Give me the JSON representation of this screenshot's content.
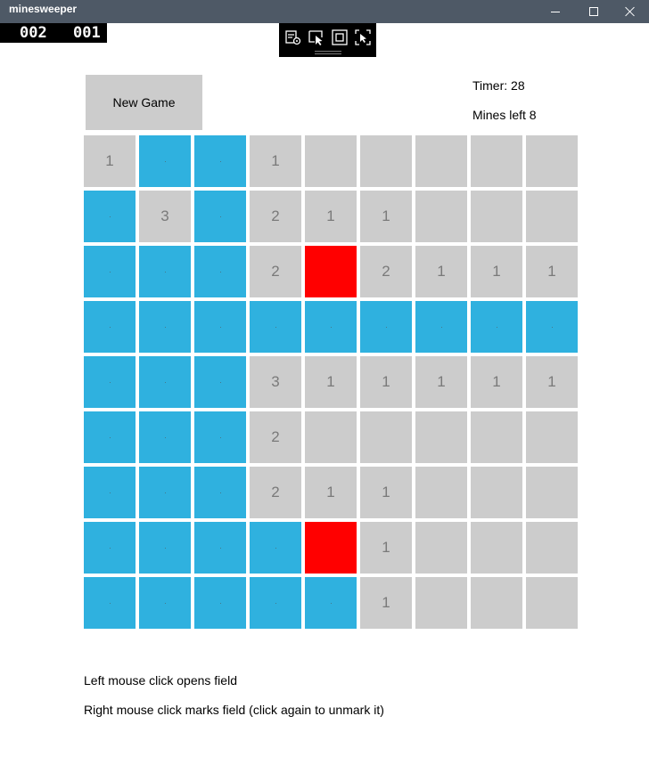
{
  "window": {
    "title": "minesweeper",
    "minimize_icon": "minimize-icon",
    "maximize_icon": "maximize-icon",
    "close_icon": "close-icon"
  },
  "frame_counter": {
    "left": "002",
    "right": "001"
  },
  "debug_toolbar": {
    "icons": [
      "live-visual-tree-icon",
      "select-element-icon",
      "display-layout-adorners-icon",
      "track-focused-element-icon"
    ]
  },
  "game": {
    "new_game_label": "New Game",
    "timer_text": "Timer: 28",
    "mines_left_text": "Mines left 8",
    "colors": {
      "hidden": "#2fb1df",
      "open": "#cccccc",
      "flagged": "#ff0000"
    },
    "board": [
      [
        {
          "s": "o",
          "n": "1"
        },
        {
          "s": "h",
          "n": ""
        },
        {
          "s": "h",
          "n": ""
        },
        {
          "s": "o",
          "n": "1"
        },
        {
          "s": "o",
          "n": ""
        },
        {
          "s": "o",
          "n": ""
        },
        {
          "s": "o",
          "n": ""
        },
        {
          "s": "o",
          "n": ""
        },
        {
          "s": "o",
          "n": ""
        }
      ],
      [
        {
          "s": "h",
          "n": ""
        },
        {
          "s": "o",
          "n": "3"
        },
        {
          "s": "h",
          "n": ""
        },
        {
          "s": "o",
          "n": "2"
        },
        {
          "s": "o",
          "n": "1"
        },
        {
          "s": "o",
          "n": "1"
        },
        {
          "s": "o",
          "n": ""
        },
        {
          "s": "o",
          "n": ""
        },
        {
          "s": "o",
          "n": ""
        }
      ],
      [
        {
          "s": "h",
          "n": ""
        },
        {
          "s": "h",
          "n": ""
        },
        {
          "s": "h",
          "n": ""
        },
        {
          "s": "o",
          "n": "2"
        },
        {
          "s": "f",
          "n": ""
        },
        {
          "s": "o",
          "n": "2"
        },
        {
          "s": "o",
          "n": "1"
        },
        {
          "s": "o",
          "n": "1"
        },
        {
          "s": "o",
          "n": "1"
        }
      ],
      [
        {
          "s": "h",
          "n": ""
        },
        {
          "s": "h",
          "n": ""
        },
        {
          "s": "h",
          "n": ""
        },
        {
          "s": "h",
          "n": ""
        },
        {
          "s": "h",
          "n": ""
        },
        {
          "s": "h",
          "n": ""
        },
        {
          "s": "h",
          "n": ""
        },
        {
          "s": "h",
          "n": ""
        },
        {
          "s": "h",
          "n": ""
        }
      ],
      [
        {
          "s": "h",
          "n": ""
        },
        {
          "s": "h",
          "n": ""
        },
        {
          "s": "h",
          "n": ""
        },
        {
          "s": "o",
          "n": "3"
        },
        {
          "s": "o",
          "n": "1"
        },
        {
          "s": "o",
          "n": "1"
        },
        {
          "s": "o",
          "n": "1"
        },
        {
          "s": "o",
          "n": "1"
        },
        {
          "s": "o",
          "n": "1"
        }
      ],
      [
        {
          "s": "h",
          "n": ""
        },
        {
          "s": "h",
          "n": ""
        },
        {
          "s": "h",
          "n": ""
        },
        {
          "s": "o",
          "n": "2"
        },
        {
          "s": "o",
          "n": ""
        },
        {
          "s": "o",
          "n": ""
        },
        {
          "s": "o",
          "n": ""
        },
        {
          "s": "o",
          "n": ""
        },
        {
          "s": "o",
          "n": ""
        }
      ],
      [
        {
          "s": "h",
          "n": ""
        },
        {
          "s": "h",
          "n": ""
        },
        {
          "s": "h",
          "n": ""
        },
        {
          "s": "o",
          "n": "2"
        },
        {
          "s": "o",
          "n": "1"
        },
        {
          "s": "o",
          "n": "1"
        },
        {
          "s": "o",
          "n": ""
        },
        {
          "s": "o",
          "n": ""
        },
        {
          "s": "o",
          "n": ""
        }
      ],
      [
        {
          "s": "h",
          "n": ""
        },
        {
          "s": "h",
          "n": ""
        },
        {
          "s": "h",
          "n": ""
        },
        {
          "s": "h",
          "n": ""
        },
        {
          "s": "f",
          "n": ""
        },
        {
          "s": "o",
          "n": "1"
        },
        {
          "s": "o",
          "n": ""
        },
        {
          "s": "o",
          "n": ""
        },
        {
          "s": "o",
          "n": ""
        }
      ],
      [
        {
          "s": "h",
          "n": ""
        },
        {
          "s": "h",
          "n": ""
        },
        {
          "s": "h",
          "n": ""
        },
        {
          "s": "h",
          "n": ""
        },
        {
          "s": "h",
          "n": ""
        },
        {
          "s": "o",
          "n": "1"
        },
        {
          "s": "o",
          "n": ""
        },
        {
          "s": "o",
          "n": ""
        },
        {
          "s": "o",
          "n": ""
        }
      ]
    ]
  },
  "instructions": {
    "left_click": "Left mouse click opens field",
    "right_click": "Right mouse click marks field (click again to unmark it)"
  }
}
